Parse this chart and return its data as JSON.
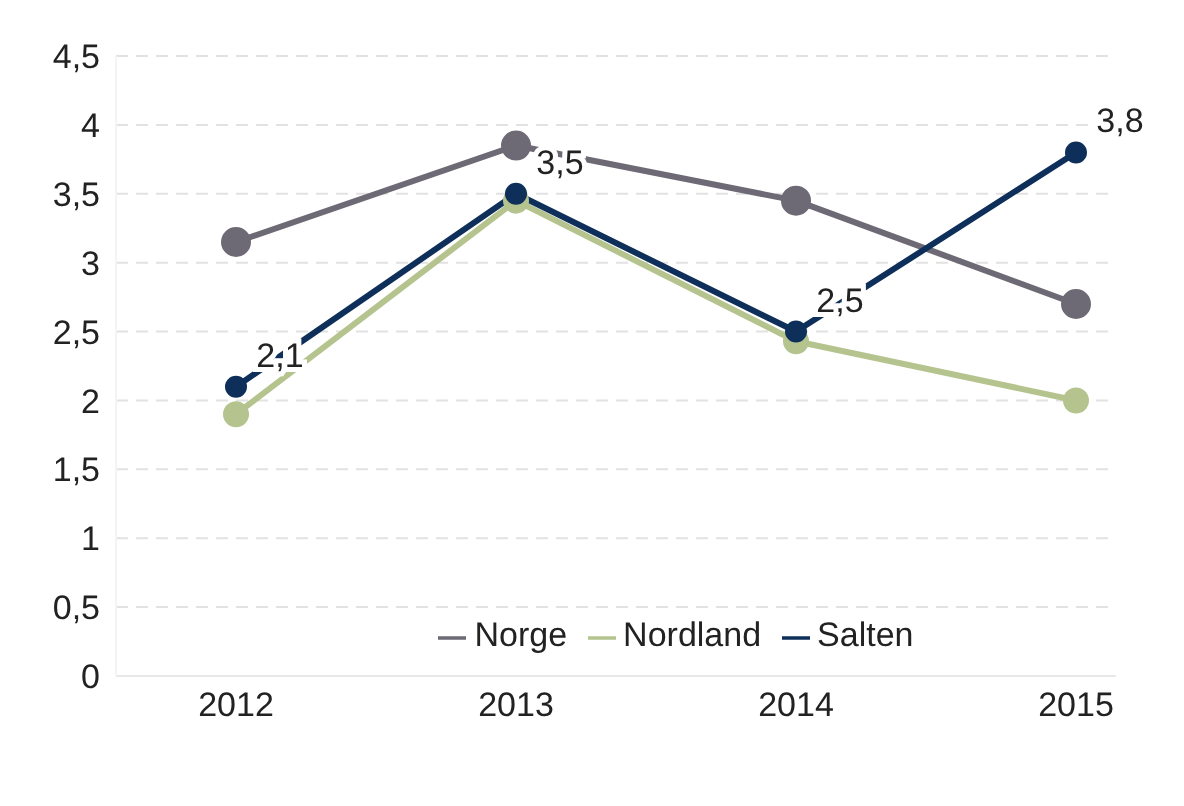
{
  "chart_data": {
    "type": "line",
    "categories": [
      "2012",
      "2013",
      "2014",
      "2015"
    ],
    "series": [
      {
        "name": "Norge",
        "color": "#6d6a75",
        "values": [
          3.15,
          3.85,
          3.45,
          2.7
        ]
      },
      {
        "name": "Nordland",
        "color": "#b5c48e",
        "values": [
          1.9,
          3.45,
          2.43,
          2.0
        ]
      },
      {
        "name": "Salten",
        "color": "#0e2f5a",
        "values": [
          2.1,
          3.5,
          2.5,
          3.8
        ],
        "value_labels": [
          "2,1",
          "3,5",
          "2,5",
          "3,8"
        ]
      }
    ],
    "ylim": [
      0,
      4.5
    ],
    "yticks": [
      {
        "value": 0,
        "label": "0"
      },
      {
        "value": 0.5,
        "label": "0,5"
      },
      {
        "value": 1,
        "label": "1"
      },
      {
        "value": 1.5,
        "label": "1,5"
      },
      {
        "value": 2,
        "label": "2"
      },
      {
        "value": 2.5,
        "label": "2,5"
      },
      {
        "value": 3,
        "label": "3"
      },
      {
        "value": 3.5,
        "label": "3,5"
      },
      {
        "value": 4,
        "label": "4"
      },
      {
        "value": 4.5,
        "label": "4,5"
      }
    ],
    "grid": "y",
    "legend": "bottom",
    "marker": "circle",
    "line_style": "solid"
  }
}
